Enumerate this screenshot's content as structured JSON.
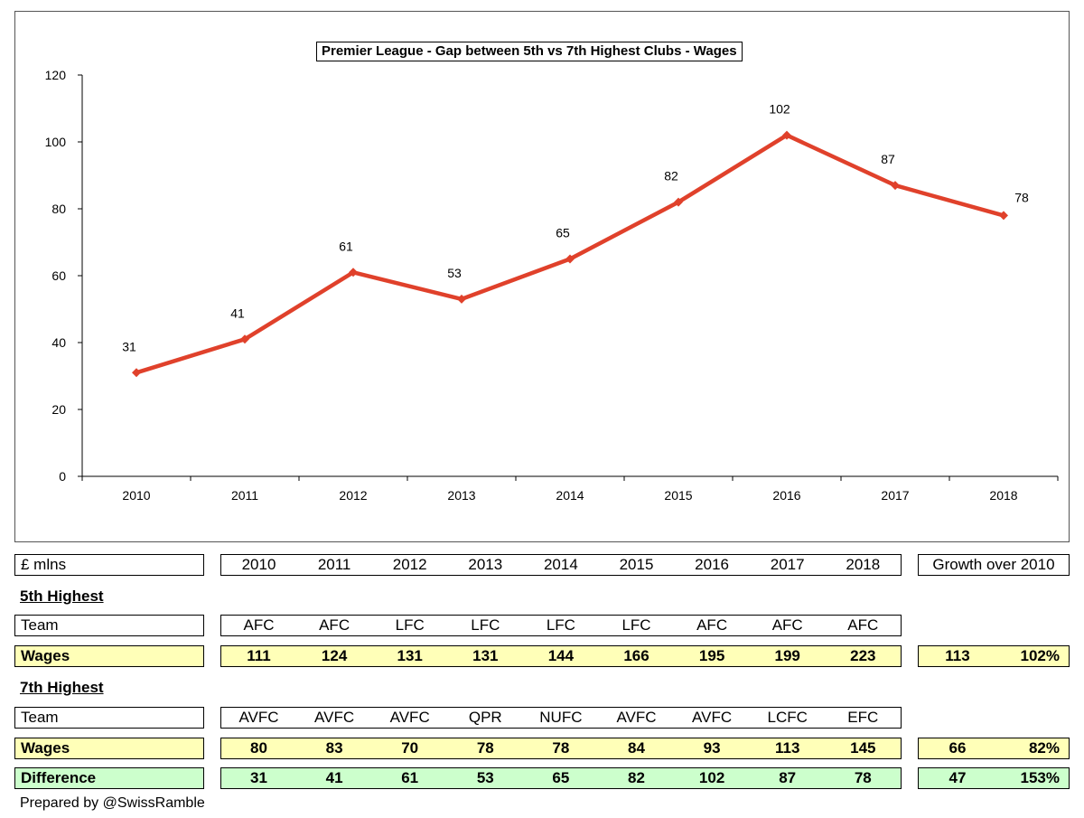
{
  "chart_data": {
    "type": "line",
    "title": "Premier League - Gap between 5th vs 7th Highest Clubs - Wages",
    "categories": [
      "2010",
      "2011",
      "2012",
      "2013",
      "2014",
      "2015",
      "2016",
      "2017",
      "2018"
    ],
    "values": [
      31,
      41,
      61,
      53,
      65,
      82,
      102,
      87,
      78
    ],
    "value_labels": [
      "31",
      "41",
      "61",
      "53",
      "65",
      "82",
      "102",
      "87",
      "78"
    ],
    "ylim": [
      0,
      120
    ],
    "yticks": [
      "0",
      "20",
      "40",
      "60",
      "80",
      "100",
      "120"
    ],
    "xlabel": "",
    "ylabel": "",
    "grid": false,
    "line_color": "#e0412b"
  },
  "table": {
    "unit_label": "£ mlns",
    "years": [
      "2010",
      "2011",
      "2012",
      "2013",
      "2014",
      "2015",
      "2016",
      "2017",
      "2018"
    ],
    "growth_header": "Growth over 2010",
    "fifth": {
      "heading": "5th Highest",
      "team_label": "Team",
      "teams": [
        "AFC",
        "AFC",
        "LFC",
        "LFC",
        "LFC",
        "LFC",
        "AFC",
        "AFC",
        "AFC"
      ],
      "wages_label": "Wages",
      "wages": [
        "111",
        "124",
        "131",
        "131",
        "144",
        "166",
        "195",
        "199",
        "223"
      ],
      "growth_abs": "113",
      "growth_pct": "102%"
    },
    "seventh": {
      "heading": "7th Highest",
      "team_label": "Team",
      "teams": [
        "AVFC",
        "AVFC",
        "AVFC",
        "QPR",
        "NUFC",
        "AVFC",
        "AVFC",
        "LCFC",
        "EFC"
      ],
      "wages_label": "Wages",
      "wages": [
        "80",
        "83",
        "70",
        "78",
        "78",
        "84",
        "93",
        "113",
        "145"
      ],
      "growth_abs": "66",
      "growth_pct": "82%"
    },
    "difference": {
      "label": "Difference",
      "values": [
        "31",
        "41",
        "61",
        "53",
        "65",
        "82",
        "102",
        "87",
        "78"
      ],
      "growth_abs": "47",
      "growth_pct": "153%"
    },
    "colors": {
      "yellow": "#ffffb8",
      "green": "#ccffcc"
    }
  },
  "footer": "Prepared by @SwissRamble"
}
